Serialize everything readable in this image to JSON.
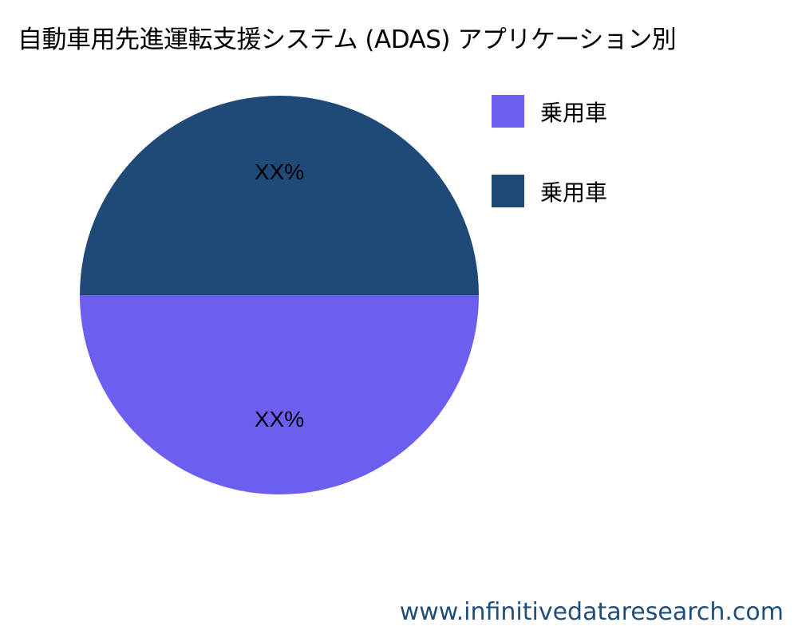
{
  "chart_data": {
    "type": "pie",
    "title": "自動車用先進運転支援システム (ADAS) アプリケーション別",
    "slices": [
      {
        "name": "乗用車",
        "value": 50,
        "label": "XX%",
        "color": "#6c5ff0"
      },
      {
        "name": "乗用車",
        "value": 50,
        "label": "XX%",
        "color": "#1f4a78"
      }
    ],
    "legend": "right"
  },
  "footer": "www.infinitivedataresearch.com"
}
